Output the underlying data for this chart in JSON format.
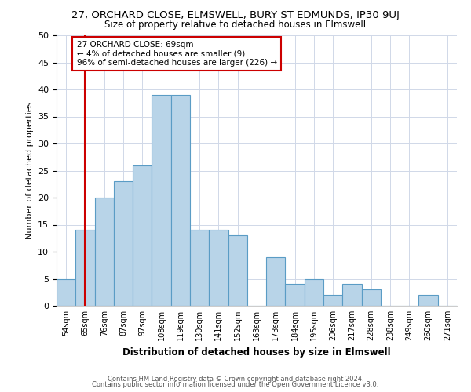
{
  "title": "27, ORCHARD CLOSE, ELMSWELL, BURY ST EDMUNDS, IP30 9UJ",
  "subtitle": "Size of property relative to detached houses in Elmswell",
  "xlabel": "Distribution of detached houses by size in Elmswell",
  "ylabel": "Number of detached properties",
  "bin_labels": [
    "54sqm",
    "65sqm",
    "76sqm",
    "87sqm",
    "97sqm",
    "108sqm",
    "119sqm",
    "130sqm",
    "141sqm",
    "152sqm",
    "163sqm",
    "173sqm",
    "184sqm",
    "195sqm",
    "206sqm",
    "217sqm",
    "228sqm",
    "238sqm",
    "249sqm",
    "260sqm",
    "271sqm"
  ],
  "bar_heights": [
    5,
    14,
    20,
    23,
    26,
    39,
    39,
    14,
    14,
    13,
    0,
    9,
    4,
    5,
    2,
    4,
    3,
    0,
    0,
    2,
    0
  ],
  "bar_color": "#b8d4e8",
  "bar_edge_color": "#5a9cc5",
  "ylim": [
    0,
    50
  ],
  "yticks": [
    0,
    5,
    10,
    15,
    20,
    25,
    30,
    35,
    40,
    45,
    50
  ],
  "vline_x": 1,
  "vline_color": "#cc0000",
  "annotation_title": "27 ORCHARD CLOSE: 69sqm",
  "annotation_line1": "← 4% of detached houses are smaller (9)",
  "annotation_line2": "96% of semi-detached houses are larger (226) →",
  "footer_line1": "Contains HM Land Registry data © Crown copyright and database right 2024.",
  "footer_line2": "Contains public sector information licensed under the Open Government Licence v3.0.",
  "background_color": "#ffffff",
  "grid_color": "#d0d8e8"
}
